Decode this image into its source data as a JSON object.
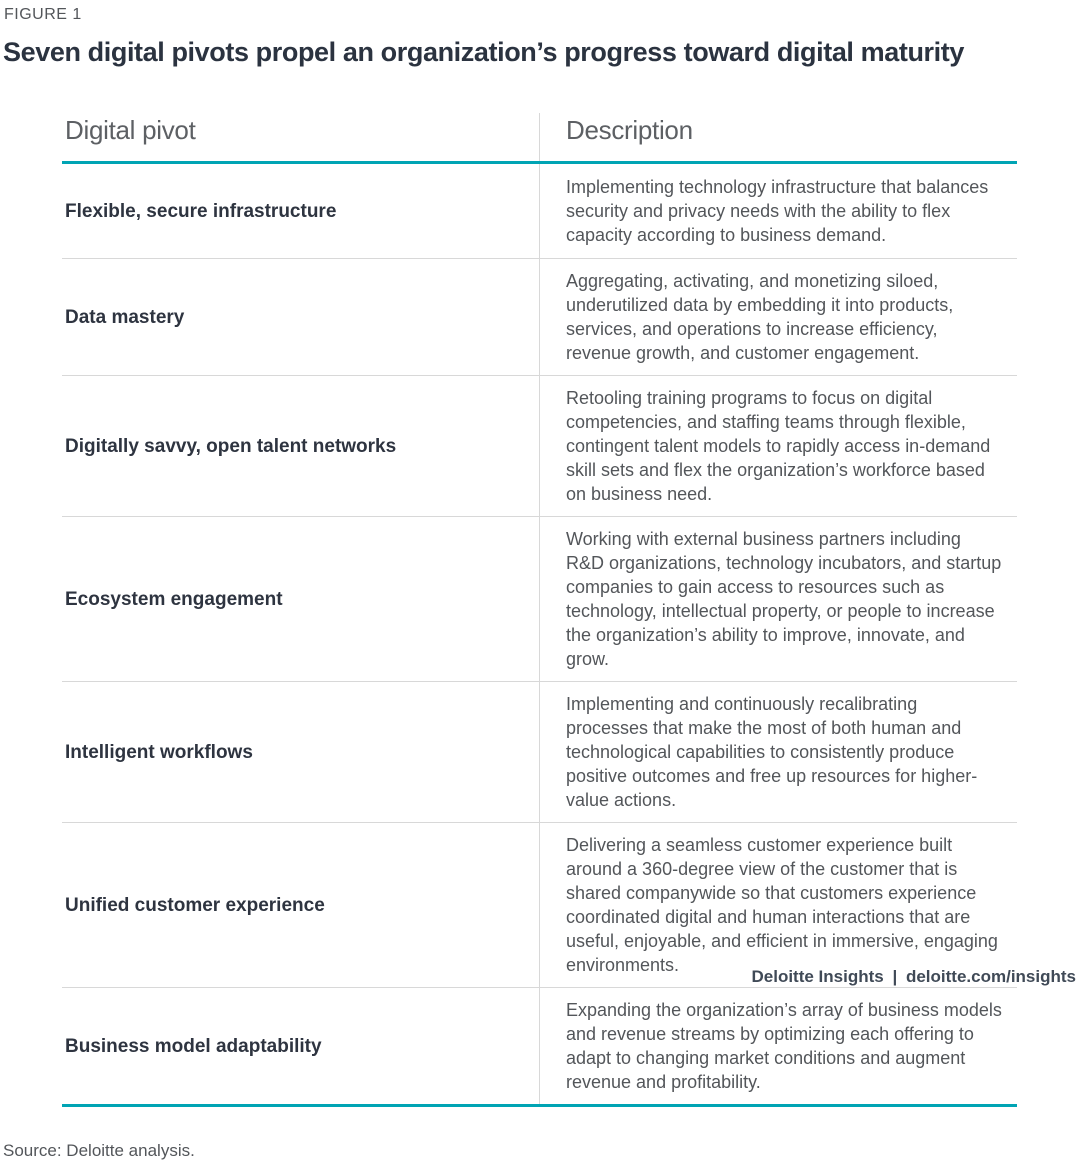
{
  "figure": {
    "label": "FIGURE 1",
    "title": "Seven digital pivots propel an organization’s progress toward digital maturity"
  },
  "table": {
    "columns": [
      "Digital pivot",
      "Description"
    ],
    "rows": [
      {
        "pivot": "Flexible, secure infrastructure",
        "description": "Implementing technology infrastructure that balances security and privacy needs with the ability to flex capacity according to business demand."
      },
      {
        "pivot": "Data mastery",
        "description": "Aggregating, activating, and monetizing siloed, underutilized data by embedding it into products, services, and operations to increase efficiency, revenue growth, and customer engagement."
      },
      {
        "pivot": "Digitally savvy, open talent networks",
        "description": "Retooling training programs to focus on digital competencies, and staffing teams through flexible, contingent talent models to rapidly access in-demand skill sets and flex the organization’s workforce based on business need."
      },
      {
        "pivot": "Ecosystem engagement",
        "description": "Working with external business partners including R&D organizations, technology incubators, and startup companies to gain access to resources such as technology, intellectual property, or people to increase the organization’s ability to improve, innovate, and grow."
      },
      {
        "pivot": "Intelligent workflows",
        "description": "Implementing and continuously recalibrating processes that make the most of both human and technological capabilities to consistently produce positive outcomes and free up resources for higher-value actions."
      },
      {
        "pivot": "Unified customer experience",
        "description": "Delivering a seamless customer experience built around a 360-degree view of the customer that is shared companywide so that customers experience coordinated digital and human interactions that are useful, enjoyable, and efficient in immersive, engaging environments."
      },
      {
        "pivot": "Business model adaptability",
        "description": "Expanding the organization’s array of business models and revenue streams by optimizing each offering to adapt to changing market conditions and augment revenue and profitability."
      }
    ]
  },
  "source": "Source: Deloitte analysis.",
  "footer": {
    "brand": "Deloitte Insights",
    "separator": "|",
    "link": "deloitte.com/insights"
  },
  "colors": {
    "accent_teal": "#00a4b4",
    "divider_gray": "#d8d8d8",
    "title_navy": "#2b3340",
    "body_gray": "#53565a"
  }
}
